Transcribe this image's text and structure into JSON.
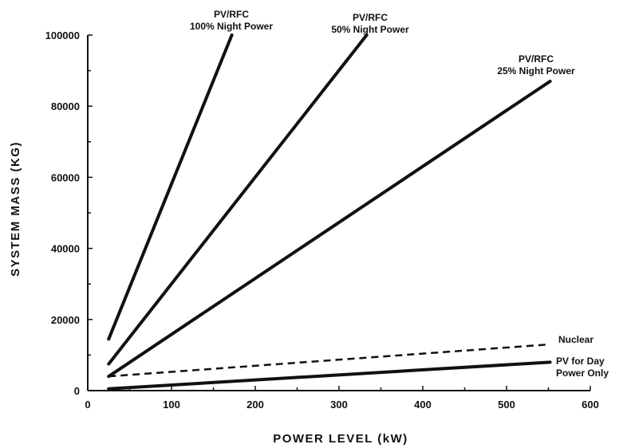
{
  "chart_data": {
    "type": "line",
    "title": "",
    "xlabel": "POWER LEVEL (kW)",
    "ylabel": "SYSTEM MASS (KG)",
    "xlim": [
      0,
      600
    ],
    "ylim": [
      0,
      100000
    ],
    "x_ticks": [
      "0",
      "100",
      "200",
      "300",
      "400",
      "500",
      "600"
    ],
    "y_ticks": [
      "0",
      "20000",
      "40000",
      "60000",
      "80000",
      "100000"
    ],
    "grid": false,
    "series": [
      {
        "name": "PV/RFC 100% Night Power",
        "label_lines": [
          "PV/RFC",
          "100% Night Power"
        ],
        "style": "solid",
        "points": [
          [
            25,
            14500
          ],
          [
            172,
            100000
          ]
        ]
      },
      {
        "name": "PV/RFC 50% Night Power",
        "label_lines": [
          "PV/RFC",
          "50% Night Power"
        ],
        "style": "solid",
        "points": [
          [
            25,
            7500
          ],
          [
            333,
            100000
          ]
        ]
      },
      {
        "name": "PV/RFC 25% Night Power",
        "label_lines": [
          "PV/RFC",
          "25% Night Power"
        ],
        "style": "solid",
        "points": [
          [
            25,
            4000
          ],
          [
            552,
            87000
          ]
        ]
      },
      {
        "name": "Nuclear",
        "label_lines": [
          "Nuclear"
        ],
        "style": "dashed",
        "points": [
          [
            25,
            4000
          ],
          [
            552,
            13000
          ]
        ]
      },
      {
        "name": "PV for Day Power Only",
        "label_lines": [
          "PV for Day",
          "Power Only"
        ],
        "style": "solid",
        "points": [
          [
            25,
            500
          ],
          [
            552,
            8000
          ]
        ]
      }
    ]
  }
}
